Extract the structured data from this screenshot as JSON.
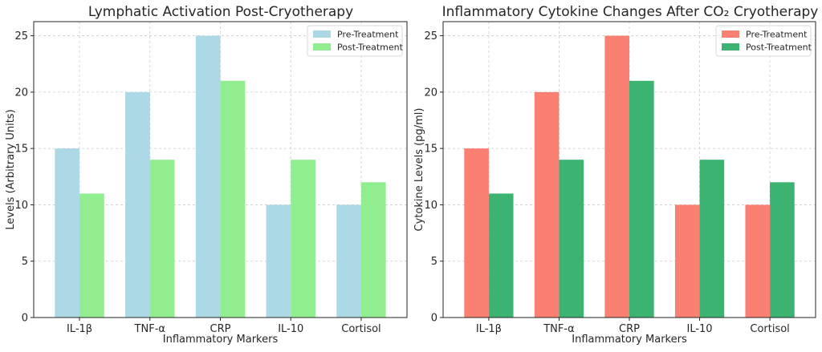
{
  "chart_data": [
    {
      "type": "bar",
      "title": "Lymphatic Activation Post-Cryotherapy",
      "xlabel": "Inflammatory Markers",
      "ylabel": "Levels (Arbitrary Units)",
      "categories": [
        "IL-1β",
        "TNF-α",
        "CRP",
        "IL-10",
        "Cortisol"
      ],
      "ylim": [
        0,
        26.25
      ],
      "yticks": [
        0,
        5,
        10,
        15,
        20,
        25
      ],
      "grid": true,
      "legend_position": "top-right",
      "series": [
        {
          "name": "Pre-Treatment",
          "values": [
            15,
            20,
            25,
            10,
            10
          ],
          "color": "#add8e6"
        },
        {
          "name": "Post-Treatment",
          "values": [
            11,
            14,
            21,
            14,
            12
          ],
          "color": "#90ee90"
        }
      ]
    },
    {
      "type": "bar",
      "title": "Inflammatory Cytokine Changes After CO₂ Cryotherapy",
      "xlabel": "Inflammatory Markers",
      "ylabel": "Cytokine Levels (pg/ml)",
      "categories": [
        "IL-1β",
        "TNF-α",
        "CRP",
        "IL-10",
        "Cortisol"
      ],
      "ylim": [
        0,
        26.25
      ],
      "yticks": [
        0,
        5,
        10,
        15,
        20,
        25
      ],
      "grid": true,
      "legend_position": "top-right",
      "series": [
        {
          "name": "Pre-Treatment",
          "values": [
            15,
            20,
            25,
            10,
            10
          ],
          "color": "#fa8072"
        },
        {
          "name": "Post-Treatment",
          "values": [
            11,
            14,
            21,
            14,
            12
          ],
          "color": "#3cb371"
        }
      ]
    }
  ]
}
